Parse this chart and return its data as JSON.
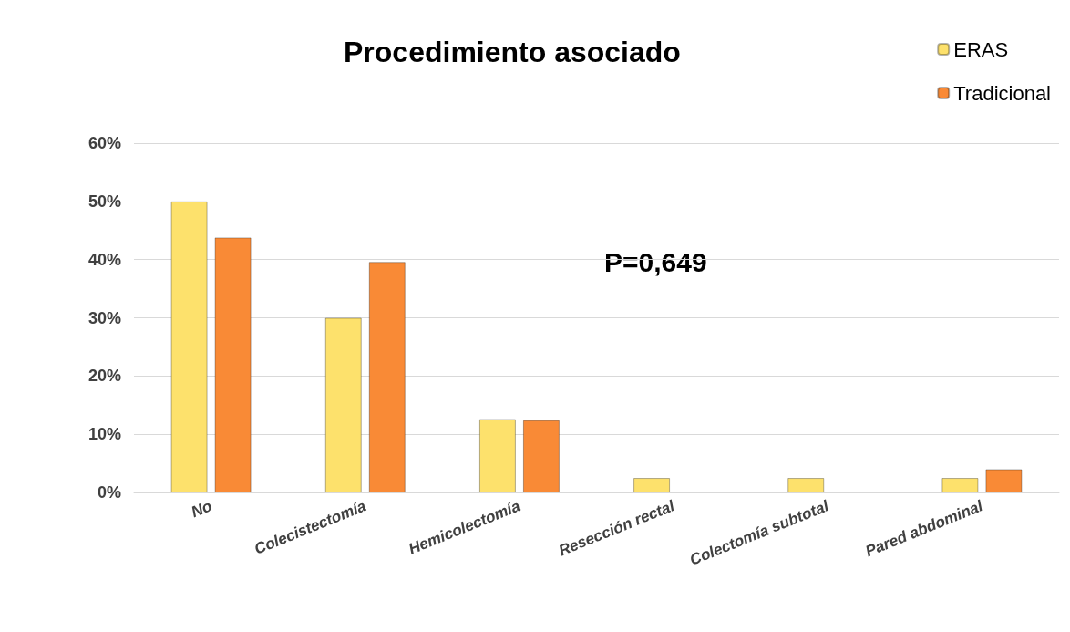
{
  "chart_data": {
    "type": "bar",
    "title": "Procedimiento asociado",
    "categories": [
      "No",
      "Colecistectomía",
      "Hemicolectomía",
      "Resección rectal",
      "Colectomía subtotal",
      "Pared abdominal"
    ],
    "series": [
      {
        "name": "ERAS",
        "color": "#fde16c",
        "values": [
          50,
          30,
          12.6,
          2.5,
          2.5,
          2.5
        ]
      },
      {
        "name": "Tradicional",
        "color": "#f98a36",
        "values": [
          43.8,
          39.6,
          12.4,
          null,
          null,
          4
        ]
      }
    ],
    "ylim": [
      0,
      60
    ],
    "yticks": [
      {
        "value": 0,
        "label": "0%"
      },
      {
        "value": 10,
        "label": "10%"
      },
      {
        "value": 20,
        "label": "20%"
      },
      {
        "value": 30,
        "label": "30%"
      },
      {
        "value": 40,
        "label": "40%"
      },
      {
        "value": 50,
        "label": "50%"
      },
      {
        "value": 60,
        "label": "60%"
      }
    ],
    "grid": "y",
    "legend": "top right",
    "annotations": [
      "P=0,649"
    ]
  }
}
